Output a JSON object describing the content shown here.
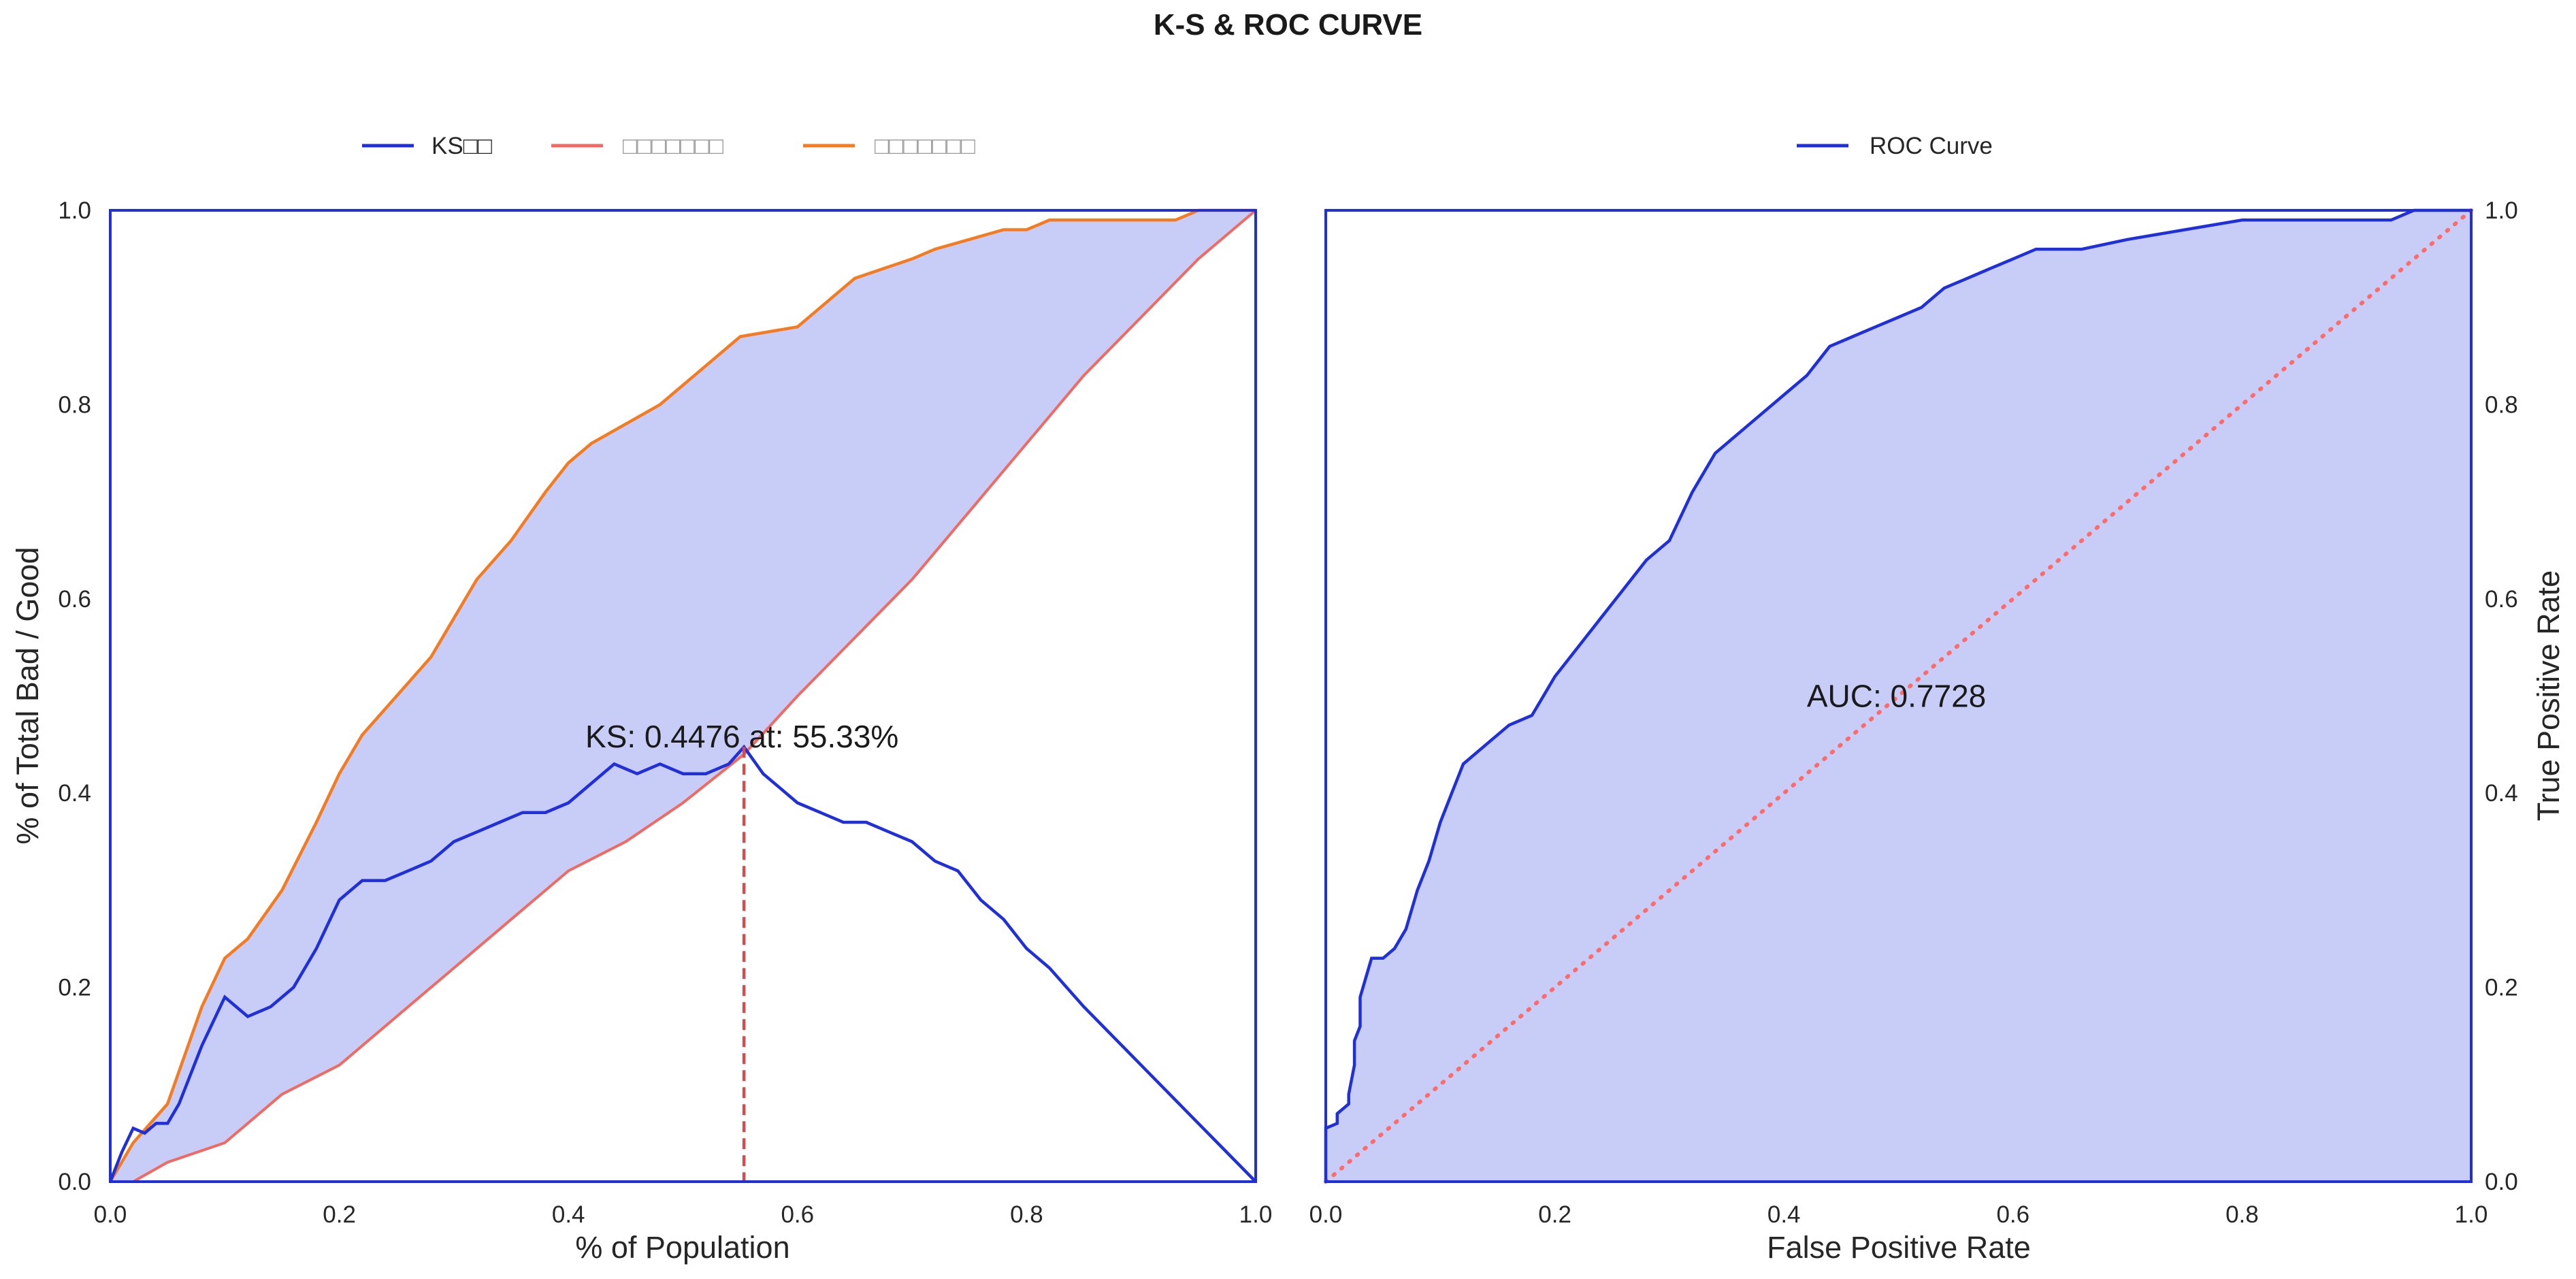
{
  "figure": {
    "title": "K-S & ROC CURVE"
  },
  "colors": {
    "ks": "#1f2fdc",
    "bad": "#ef6a63",
    "good": "#f57b20",
    "fill": "#c8cdf8",
    "axes": "#1f2fdc",
    "ks_marker": "#d94a4a",
    "diag": "#ff6b6b"
  },
  "chart_data": [
    {
      "type": "line",
      "xlabel": "% of Population",
      "ylabel": "% of Total Bad / Good",
      "xlim": [
        0,
        1
      ],
      "ylim": [
        0,
        1
      ],
      "xticks": [
        "0.0",
        "0.2",
        "0.4",
        "0.6",
        "0.8",
        "1.0"
      ],
      "yticks": [
        "0.0",
        "0.2",
        "0.4",
        "0.6",
        "0.8",
        "1.0"
      ],
      "legend_position": "top",
      "legend": [
        "KS□□",
        "□□□□□□□",
        "□□□□□□□"
      ],
      "annotation": "KS: 0.4476 at: 55.33%",
      "ks_point": {
        "x": 0.5533,
        "y": 0.4476
      },
      "series": [
        {
          "name": "KS□□",
          "color_key": "ks",
          "x": [
            0,
            0.01,
            0.02,
            0.03,
            0.04,
            0.05,
            0.06,
            0.08,
            0.1,
            0.12,
            0.14,
            0.16,
            0.18,
            0.2,
            0.22,
            0.24,
            0.26,
            0.28,
            0.3,
            0.32,
            0.34,
            0.36,
            0.38,
            0.4,
            0.42,
            0.44,
            0.46,
            0.48,
            0.5,
            0.52,
            0.54,
            0.5533,
            0.57,
            0.6,
            0.62,
            0.64,
            0.66,
            0.68,
            0.7,
            0.72,
            0.74,
            0.76,
            0.78,
            0.8,
            0.82,
            0.85,
            0.9,
            0.95,
            1.0
          ],
          "y": [
            0,
            0.03,
            0.055,
            0.05,
            0.06,
            0.06,
            0.08,
            0.14,
            0.19,
            0.17,
            0.18,
            0.2,
            0.24,
            0.29,
            0.31,
            0.31,
            0.32,
            0.33,
            0.35,
            0.36,
            0.37,
            0.38,
            0.38,
            0.39,
            0.41,
            0.43,
            0.42,
            0.43,
            0.42,
            0.42,
            0.43,
            0.4476,
            0.42,
            0.39,
            0.38,
            0.37,
            0.37,
            0.36,
            0.35,
            0.33,
            0.32,
            0.29,
            0.27,
            0.24,
            0.22,
            0.18,
            0.12,
            0.06,
            0.0
          ]
        },
        {
          "name": "□□□□□□□",
          "color_key": "bad",
          "x": [
            0,
            0.02,
            0.05,
            0.1,
            0.15,
            0.2,
            0.25,
            0.3,
            0.35,
            0.4,
            0.45,
            0.5,
            0.5533,
            0.6,
            0.65,
            0.7,
            0.75,
            0.8,
            0.85,
            0.9,
            0.95,
            1.0
          ],
          "y": [
            0,
            0.0,
            0.02,
            0.04,
            0.09,
            0.12,
            0.17,
            0.22,
            0.27,
            0.32,
            0.35,
            0.39,
            0.44,
            0.5,
            0.56,
            0.62,
            0.69,
            0.76,
            0.83,
            0.89,
            0.95,
            1.0
          ]
        },
        {
          "name": "□□□□□□□",
          "color_key": "good",
          "x": [
            0,
            0.02,
            0.05,
            0.08,
            0.1,
            0.12,
            0.15,
            0.18,
            0.2,
            0.22,
            0.25,
            0.28,
            0.3,
            0.32,
            0.35,
            0.38,
            0.4,
            0.42,
            0.45,
            0.48,
            0.5,
            0.52,
            0.55,
            0.6,
            0.62,
            0.65,
            0.7,
            0.72,
            0.75,
            0.78,
            0.8,
            0.82,
            0.85,
            0.9,
            0.93,
            0.95,
            1.0
          ],
          "y": [
            0,
            0.04,
            0.08,
            0.18,
            0.23,
            0.25,
            0.3,
            0.37,
            0.42,
            0.46,
            0.5,
            0.54,
            0.58,
            0.62,
            0.66,
            0.71,
            0.74,
            0.76,
            0.78,
            0.8,
            0.82,
            0.84,
            0.87,
            0.88,
            0.9,
            0.93,
            0.95,
            0.96,
            0.97,
            0.98,
            0.98,
            0.99,
            0.99,
            0.99,
            0.99,
            1.0,
            1.0
          ]
        }
      ]
    },
    {
      "type": "line",
      "xlabel": "False Positive Rate",
      "ylabel": "True Positive Rate",
      "xlim": [
        0,
        1
      ],
      "ylim": [
        0,
        1
      ],
      "xticks": [
        "0.0",
        "0.2",
        "0.4",
        "0.6",
        "0.8",
        "1.0"
      ],
      "yticks": [
        "0.0",
        "0.2",
        "0.4",
        "0.6",
        "0.8",
        "1.0"
      ],
      "legend_position": "top",
      "legend": [
        "ROC Curve"
      ],
      "annotation": "AUC: 0.7728",
      "annotation_at": {
        "x": 0.42,
        "y": 0.5
      },
      "diagonal": {
        "x": [
          0,
          1
        ],
        "y": [
          0,
          1
        ]
      },
      "series": [
        {
          "name": "ROC Curve",
          "color_key": "ks",
          "x": [
            0,
            0.0,
            0.01,
            0.01,
            0.02,
            0.02,
            0.025,
            0.025,
            0.03,
            0.03,
            0.035,
            0.04,
            0.05,
            0.06,
            0.07,
            0.08,
            0.09,
            0.1,
            0.11,
            0.12,
            0.14,
            0.16,
            0.18,
            0.19,
            0.2,
            0.22,
            0.24,
            0.26,
            0.28,
            0.3,
            0.32,
            0.34,
            0.36,
            0.38,
            0.4,
            0.42,
            0.44,
            0.46,
            0.48,
            0.5,
            0.52,
            0.54,
            0.56,
            0.58,
            0.6,
            0.62,
            0.66,
            0.7,
            0.75,
            0.8,
            0.85,
            0.9,
            0.93,
            0.95,
            1.0
          ],
          "y": [
            0,
            0.055,
            0.06,
            0.07,
            0.08,
            0.09,
            0.12,
            0.145,
            0.16,
            0.19,
            0.21,
            0.23,
            0.23,
            0.24,
            0.26,
            0.3,
            0.33,
            0.37,
            0.4,
            0.43,
            0.45,
            0.47,
            0.48,
            0.5,
            0.52,
            0.55,
            0.58,
            0.61,
            0.64,
            0.66,
            0.71,
            0.75,
            0.77,
            0.79,
            0.81,
            0.83,
            0.86,
            0.87,
            0.88,
            0.89,
            0.9,
            0.92,
            0.93,
            0.94,
            0.95,
            0.96,
            0.96,
            0.97,
            0.98,
            0.99,
            0.99,
            0.99,
            0.99,
            1.0,
            1.0
          ]
        }
      ]
    }
  ]
}
